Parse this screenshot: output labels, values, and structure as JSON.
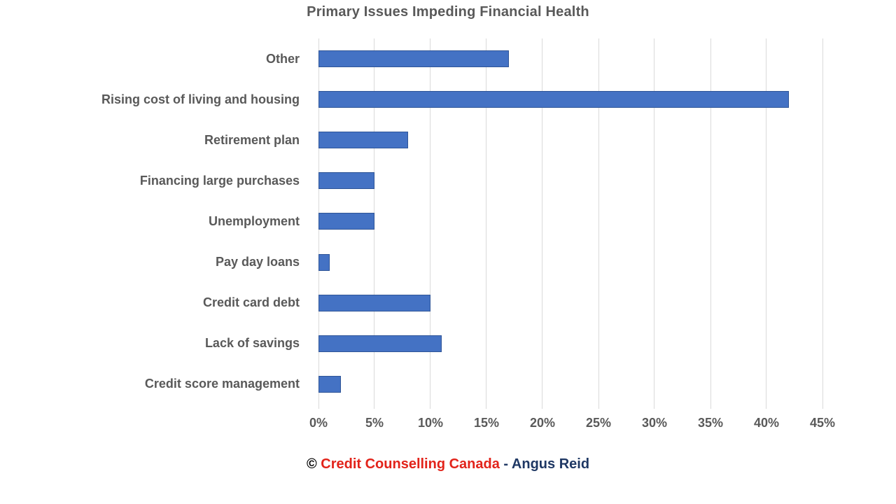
{
  "chart_data": {
    "type": "bar",
    "orientation": "horizontal",
    "title": "Primary Issues Impeding Financial Health",
    "categories": [
      "Other",
      "Rising cost of living and housing",
      "Retirement plan",
      "Financing large purchases",
      "Unemployment",
      "Pay day loans",
      "Credit card debt",
      "Lack of savings",
      "Credit score management"
    ],
    "values": [
      17,
      42,
      8,
      5,
      5,
      1,
      10,
      11,
      2
    ],
    "unit": "%",
    "xlabel": "",
    "ylabel": "",
    "xlim": [
      0,
      45
    ],
    "tick_step": 5,
    "tick_labels": [
      "0%",
      "5%",
      "10%",
      "15%",
      "20%",
      "25%",
      "30%",
      "35%",
      "40%",
      "45%"
    ],
    "grid": true,
    "legend": "none",
    "bar_color": "#4472c4",
    "bar_border_color": "#2f5597",
    "gridline_color": "#d9d9d9",
    "text_color": "#595959"
  },
  "footer": {
    "copyright_symbol": "©",
    "source": "Credit Counselling Canada",
    "separator": "-",
    "attribution": "Angus Reid",
    "source_color": "#e2231a",
    "attribution_color": "#1f3864"
  }
}
